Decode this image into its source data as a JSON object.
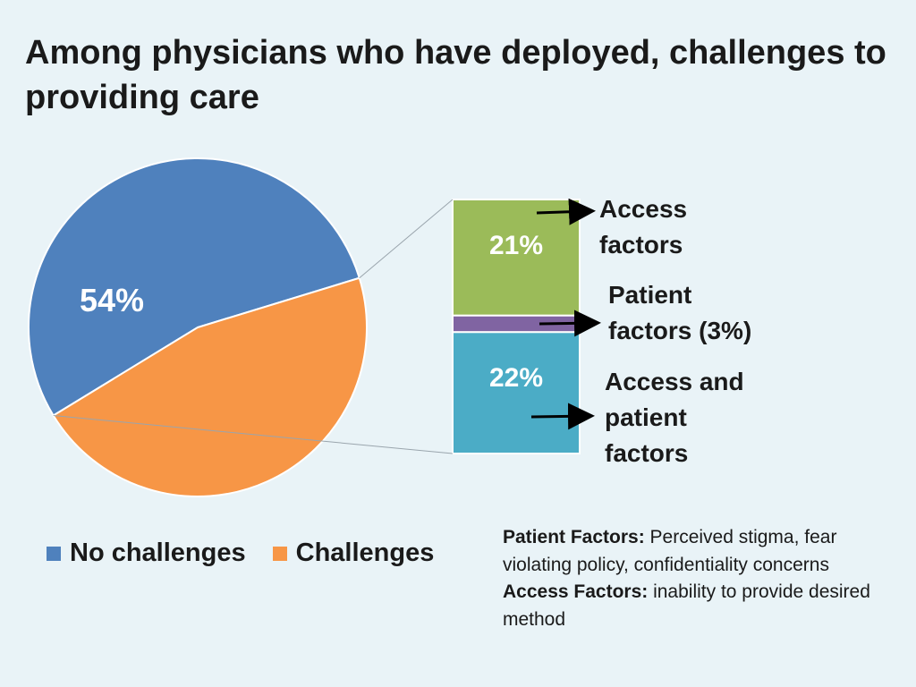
{
  "title": "Among physicians who have deployed, challenges to providing care",
  "chart_data": [
    {
      "type": "pie",
      "slices": [
        {
          "label": "No challenges",
          "value": 54,
          "data_label": "54%",
          "color": "#4f81bd"
        },
        {
          "label": "Challenges",
          "value": 46,
          "data_label": "",
          "color": "#f79646"
        }
      ],
      "legend": [
        "No challenges",
        "Challenges"
      ],
      "legend_position": "bottom"
    },
    {
      "type": "bar",
      "stacked": true,
      "categories": [
        "Challenges"
      ],
      "series": [
        {
          "name": "Access and patient factors",
          "value": 22,
          "data_label": "22%",
          "color": "#4bacc6"
        },
        {
          "name": "Patient factors (3%)",
          "value": 3,
          "data_label": "",
          "color": "#8064a2"
        },
        {
          "name": "Access factors",
          "value": 21,
          "data_label": "21%",
          "color": "#9bbb59"
        }
      ]
    }
  ],
  "annotations": {
    "access": [
      "Access",
      "factors"
    ],
    "patient": [
      "Patient",
      "factors (3%)"
    ],
    "both": [
      "Access and",
      "patient",
      "factors"
    ]
  },
  "notes": {
    "patient_label": "Patient Factors:",
    "patient_text": " Perceived stigma, fear violating policy, confidentiality concerns",
    "access_label": "Access Factors:",
    "access_text": " inability to provide desired method"
  }
}
